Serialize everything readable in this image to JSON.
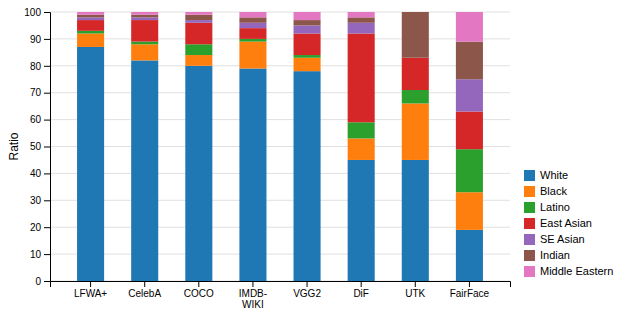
{
  "chart_data": {
    "type": "bar",
    "stacked": true,
    "categories": [
      "LFWA+",
      "CelebA",
      "COCO",
      "IMDB-\nWIKI",
      "VGG2",
      "DiF",
      "UTK",
      "FairFace"
    ],
    "series": [
      {
        "name": "White",
        "color": "#1f77b4",
        "values": [
          87,
          82,
          80,
          79,
          78,
          45,
          45,
          19
        ]
      },
      {
        "name": "Black",
        "color": "#ff7f0e",
        "values": [
          5,
          6,
          4,
          10,
          5,
          8,
          21,
          14
        ]
      },
      {
        "name": "Latino",
        "color": "#2ca02c",
        "values": [
          1,
          1,
          4,
          1,
          1,
          6,
          5,
          16
        ]
      },
      {
        "name": "East Asian",
        "color": "#d62728",
        "values": [
          4,
          8,
          8,
          4,
          8,
          33,
          12,
          14
        ]
      },
      {
        "name": "SE Asian",
        "color": "#9467bd",
        "values": [
          1,
          1,
          1,
          2,
          3,
          4,
          0,
          12
        ]
      },
      {
        "name": "Indian",
        "color": "#8c564b",
        "values": [
          1,
          1,
          2,
          2,
          2,
          2,
          17,
          14
        ]
      },
      {
        "name": "Middle Eastern",
        "color": "#e377c2",
        "values": [
          1,
          1,
          1,
          2,
          3,
          2,
          0,
          11
        ]
      }
    ],
    "ylabel": "Ratio",
    "ylim": [
      0,
      100
    ],
    "yticks": [
      0,
      10,
      20,
      30,
      40,
      50,
      60,
      70,
      80,
      90,
      100
    ],
    "grid": true,
    "legend": "lower right"
  }
}
